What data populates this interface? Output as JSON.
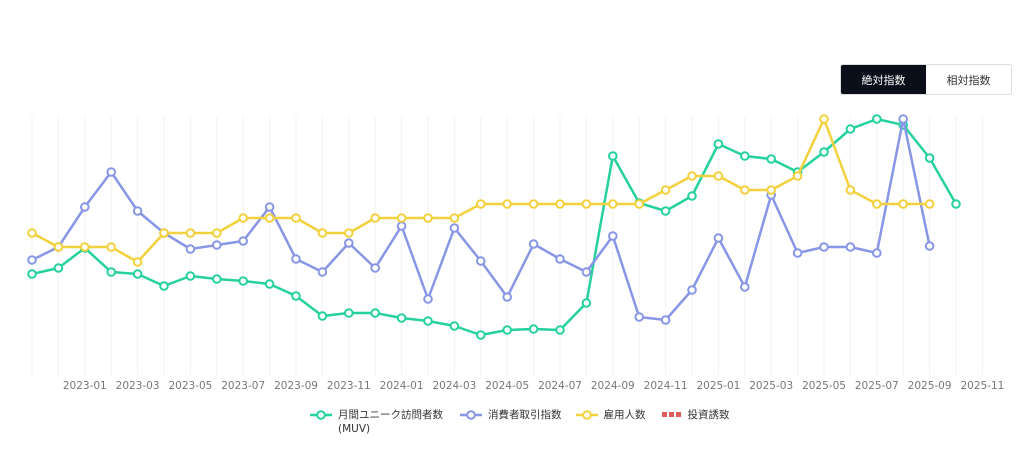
{
  "controls": {
    "options": [
      "絶対指数",
      "相対指数"
    ]
  },
  "chart_data": {
    "type": "line",
    "categories": [
      null,
      null,
      "2023-01",
      null,
      "2023-03",
      null,
      "2023-05",
      null,
      "2023-07",
      null,
      "2023-09",
      null,
      "2023-11",
      null,
      "2024-01",
      null,
      "2024-03",
      null,
      "2024-05",
      null,
      "2024-07",
      null,
      "2024-09",
      null,
      "2024-11",
      null,
      "2025-01",
      null,
      "2025-03",
      null,
      "2025-05",
      null,
      "2025-07",
      null,
      "2025-09",
      null,
      "2025-11"
    ],
    "ylim": [
      0,
      260
    ],
    "grid": true,
    "legend": "bottom",
    "series": [
      {
        "name": "月間ユニーク訪問者数 (MUV)",
        "color": "#25d19d",
        "values": [
          101,
          107,
          127,
          103,
          101,
          89,
          99,
          96,
          94,
          91,
          79,
          59,
          62,
          62,
          57,
          54,
          49,
          40,
          45,
          46,
          45,
          72,
          219,
          172,
          164,
          179,
          231,
          219,
          216,
          203,
          223,
          246,
          256,
          250,
          217,
          171,
          null
        ]
      },
      {
        "name": "消費者取引指数",
        "color": "#8896e6",
        "values": [
          115,
          128,
          168,
          203,
          164,
          142,
          126,
          130,
          134,
          168,
          116,
          103,
          132,
          107,
          149,
          76,
          147,
          114,
          78,
          131,
          116,
          103,
          139,
          58,
          55,
          85,
          137,
          88,
          180,
          122,
          128,
          128,
          122,
          256,
          129,
          null,
          null
        ]
      },
      {
        "name": "雇用人数",
        "color": "#f2d13d",
        "values": [
          142,
          128,
          128,
          128,
          113,
          142,
          142,
          142,
          157,
          157,
          157,
          142,
          142,
          157,
          157,
          157,
          157,
          171,
          171,
          171,
          171,
          171,
          171,
          171,
          185,
          199,
          199,
          185,
          185,
          199,
          256,
          185,
          171,
          171,
          171,
          null,
          null
        ]
      },
      {
        "name": "投資誘致",
        "color": "#e05a5a",
        "values": [
          null,
          null,
          null,
          null,
          null,
          null,
          null,
          null,
          null,
          null,
          null,
          null,
          null,
          null,
          null,
          null,
          null,
          null,
          null,
          null,
          null,
          null,
          null,
          null,
          null,
          null,
          null,
          null,
          null,
          null,
          null,
          null,
          null,
          null,
          null,
          null,
          null
        ]
      }
    ]
  }
}
